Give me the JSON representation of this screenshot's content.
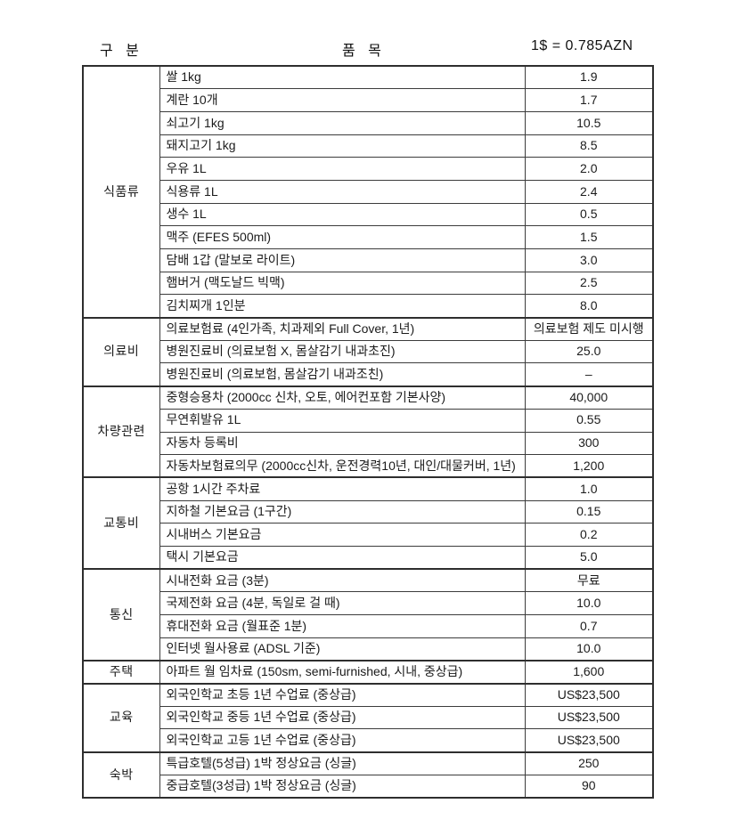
{
  "header": {
    "category_label": "구 분",
    "item_label": "품 목",
    "rate_label": "1$ = 0.785AZN"
  },
  "colors": {
    "background": "#ffffff",
    "text": "#1b1b1b",
    "border": "#3c3c3c",
    "border_heavy": "#2e2e2e"
  },
  "table": {
    "groups": [
      {
        "category": "식품류",
        "rows": [
          {
            "item": "쌀 1kg",
            "price": "1.9"
          },
          {
            "item": "계란 10개",
            "price": "1.7"
          },
          {
            "item": "쇠고기 1kg",
            "price": "10.5"
          },
          {
            "item": "돼지고기 1kg",
            "price": "8.5"
          },
          {
            "item": "우유 1L",
            "price": "2.0"
          },
          {
            "item": "식용류 1L",
            "price": "2.4"
          },
          {
            "item": "생수 1L",
            "price": "0.5"
          },
          {
            "item": "맥주 (EFES 500ml)",
            "price": "1.5"
          },
          {
            "item": "담배 1갑 (말보로 라이트)",
            "price": "3.0"
          },
          {
            "item": "햄버거 (맥도날드 빅맥)",
            "price": "2.5"
          },
          {
            "item": "김치찌개 1인분",
            "price": "8.0"
          }
        ]
      },
      {
        "category": "의료비",
        "rows": [
          {
            "item": "의료보험료 (4인가족, 치과제외 Full Cover, 1년)",
            "price": "의료보험 제도 미시행"
          },
          {
            "item": "병원진료비 (의료보험 X, 몸살감기 내과초진)",
            "price": "25.0"
          },
          {
            "item": "병원진료비 (의료보험, 몸살감기 내과조친)",
            "price": "–"
          }
        ]
      },
      {
        "category": "차량관련",
        "rows": [
          {
            "item": "중형승용차 (2000cc 신차, 오토, 에어컨포함 기본사양)",
            "price": "40,000"
          },
          {
            "item": "무연휘발유 1L",
            "price": "0.55"
          },
          {
            "item": "자동차 등록비",
            "price": "300"
          },
          {
            "item": "자동차보험료의무 (2000cc신차, 운전경력10년, 대인/대물커버, 1년)",
            "price": "1,200"
          }
        ]
      },
      {
        "category": "교통비",
        "rows": [
          {
            "item": "공항 1시간 주차료",
            "price": "1.0"
          },
          {
            "item": "지하철 기본요금 (1구간)",
            "price": "0.15"
          },
          {
            "item": "시내버스 기본요금",
            "price": "0.2"
          },
          {
            "item": "택시 기본요금",
            "price": "5.0"
          }
        ]
      },
      {
        "category": "통신",
        "rows": [
          {
            "item": "시내전화 요금 (3분)",
            "price": "무료"
          },
          {
            "item": "국제전화 요금 (4분, 독일로 걸 때)",
            "price": "10.0"
          },
          {
            "item": "휴대전화 요금 (월표준 1분)",
            "price": "0.7"
          },
          {
            "item": "인터넷 월사용료 (ADSL 기준)",
            "price": "10.0"
          }
        ]
      },
      {
        "category": "주택",
        "rows": [
          {
            "item": "아파트 월 임차료 (150sm, semi-furnished, 시내, 중상급)",
            "price": "1,600"
          }
        ]
      },
      {
        "category": "교육",
        "rows": [
          {
            "item": "외국인학교 초등 1년 수업료 (중상급)",
            "price": "US$23,500"
          },
          {
            "item": "외국인학교 중등 1년 수업료 (중상급)",
            "price": "US$23,500"
          },
          {
            "item": "외국인학교 고등 1년 수업료 (중상급)",
            "price": "US$23,500"
          }
        ]
      },
      {
        "category": "숙박",
        "rows": [
          {
            "item": "특급호텔(5성급) 1박 정상요금 (싱글)",
            "price": "250"
          },
          {
            "item": "중급호텔(3성급) 1박 정상요금 (싱글)",
            "price": "90"
          }
        ]
      }
    ]
  }
}
